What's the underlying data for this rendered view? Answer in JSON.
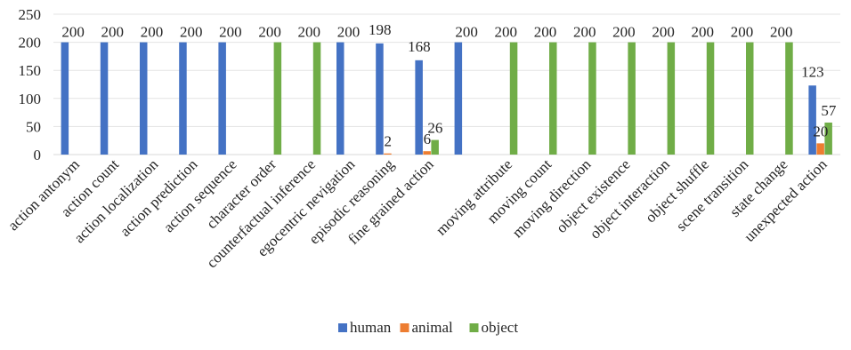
{
  "chart_data": {
    "type": "bar",
    "categories": [
      "action antonym",
      "action count",
      "action localization",
      "action prediction",
      "action sequence",
      "character order",
      "counterfactual inference",
      "egocentric nevigation",
      "episodic reasoning",
      "fine grained action",
      "",
      "moving attribute",
      "moving count",
      "moving direction",
      "object existence",
      "object interaction",
      "object shuffle",
      "scene transition",
      "state change",
      "unexpected action"
    ],
    "series": [
      {
        "name": "human",
        "color": "#4472C4",
        "values": [
          200,
          200,
          200,
          200,
          200,
          0,
          0,
          200,
          198,
          168,
          200,
          0,
          0,
          0,
          0,
          0,
          0,
          0,
          0,
          123
        ]
      },
      {
        "name": "animal",
        "color": "#ED7D31",
        "values": [
          0,
          0,
          0,
          0,
          0,
          0,
          0,
          0,
          2,
          6,
          0,
          0,
          0,
          0,
          0,
          0,
          0,
          0,
          0,
          20
        ]
      },
      {
        "name": "object",
        "color": "#70AD47",
        "values": [
          0,
          0,
          0,
          0,
          0,
          200,
          200,
          0,
          0,
          26,
          0,
          200,
          200,
          200,
          200,
          200,
          200,
          200,
          200,
          57
        ]
      }
    ],
    "data_labels": [
      {
        "category": 0,
        "value": 200
      },
      {
        "category": 1,
        "value": 200
      },
      {
        "category": 2,
        "value": 200
      },
      {
        "category": 3,
        "value": 200
      },
      {
        "category": 4,
        "value": 200
      },
      {
        "category": 5,
        "value": 200
      },
      {
        "category": 6,
        "value": 200
      },
      {
        "category": 7,
        "value": 200
      },
      {
        "category": 8,
        "value": 198
      },
      {
        "category": 8,
        "value": 2
      },
      {
        "category": 9,
        "value": 168
      },
      {
        "category": 9,
        "value": 6
      },
      {
        "category": 9,
        "value": 26
      },
      {
        "category": 10,
        "value": 200
      },
      {
        "category": 11,
        "value": 200
      },
      {
        "category": 12,
        "value": 200
      },
      {
        "category": 13,
        "value": 200
      },
      {
        "category": 14,
        "value": 200
      },
      {
        "category": 15,
        "value": 200
      },
      {
        "category": 16,
        "value": 200
      },
      {
        "category": 17,
        "value": 200
      },
      {
        "category": 18,
        "value": 200
      },
      {
        "category": 19,
        "value": 123
      },
      {
        "category": 19,
        "value": 20
      },
      {
        "category": 19,
        "value": 57
      }
    ],
    "ylim": [
      0,
      250
    ],
    "yticks": [
      0,
      50,
      100,
      150,
      200,
      250
    ],
    "grid": true,
    "legend_position": "bottom",
    "title": "",
    "xlabel": "",
    "ylabel": ""
  }
}
